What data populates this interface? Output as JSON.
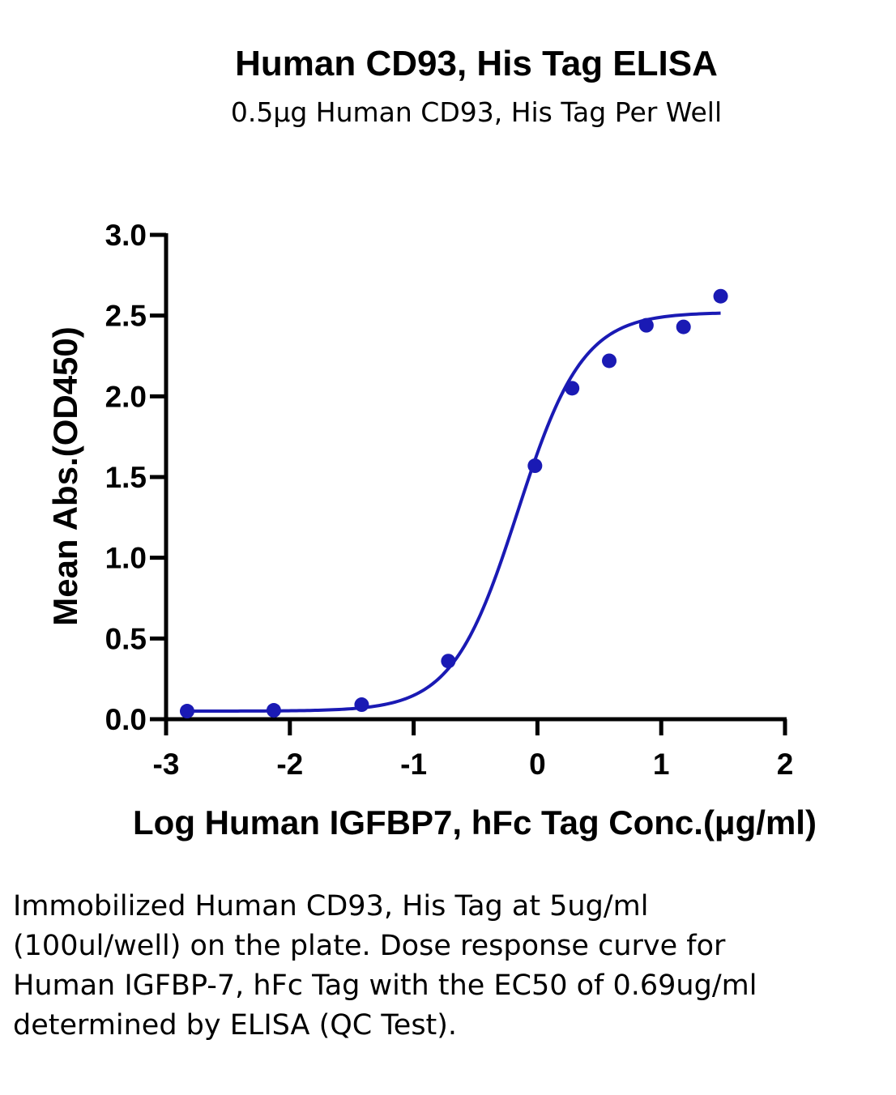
{
  "chart_data": {
    "type": "scatter",
    "title": "Human CD93, His Tag ELISA",
    "subtitle": "0.5μg Human CD93, His Tag Per Well",
    "xlabel": "Log  Human IGFBP7, hFc Tag Conc.(μg/ml)",
    "ylabel": "Mean Abs.(OD450)",
    "xlim": [
      -3,
      2
    ],
    "ylim": [
      0,
      3.0
    ],
    "x_ticks": [
      "-3",
      "-2",
      "-1",
      "0",
      "1",
      "2"
    ],
    "y_ticks": [
      "0.0",
      "0.5",
      "1.0",
      "1.5",
      "2.0",
      "2.5",
      "3.0"
    ],
    "grid": false,
    "color": "#1a1ab4",
    "series": [
      {
        "x": [
          -2.83,
          -2.13,
          -1.42,
          -0.72,
          -0.02,
          0.28,
          0.58,
          0.88,
          1.18,
          1.48
        ],
        "y": [
          0.05,
          0.055,
          0.09,
          0.36,
          1.57,
          2.05,
          2.22,
          2.44,
          2.43,
          2.62
        ]
      }
    ],
    "fit": {
      "model": "four-parameter logistic",
      "bottom": 0.05,
      "top": 2.52,
      "log_ec50": -0.16,
      "hill_slope": 1.65
    }
  },
  "caption": "Immobilized Human CD93, His Tag at 5ug/ml (100ul/well) on the plate. Dose response curve for Human IGFBP-7, hFc Tag with the EC50 of 0.69ug/ml determined by ELISA (QC Test)."
}
